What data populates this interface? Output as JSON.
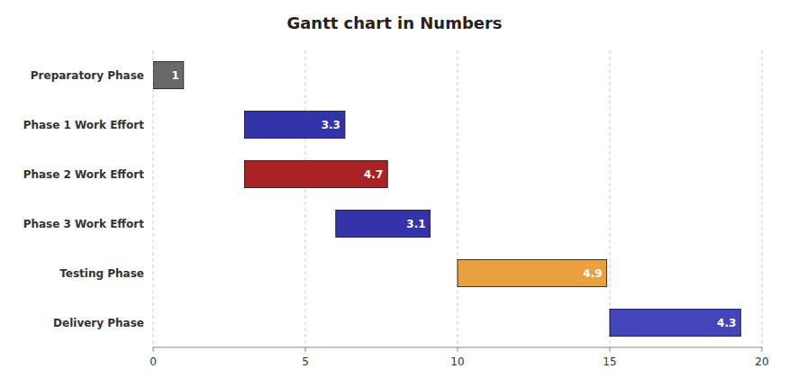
{
  "chart_data": {
    "type": "bar",
    "orientation": "horizontal",
    "title": "Gantt chart in Numbers",
    "categories": [
      "Preparatory Phase",
      "Phase 1 Work Effort",
      "Phase 2 Work Effort",
      "Phase 3 Work Effort",
      "Testing Phase",
      "Delivery Phase"
    ],
    "starts": [
      0,
      3,
      3,
      6,
      10,
      15
    ],
    "values": [
      1,
      3.3,
      4.7,
      3.1,
      4.9,
      4.3
    ],
    "colors": [
      "#696969",
      "#3333aa",
      "#aa2222",
      "#3333aa",
      "#e8a040",
      "#4444bb"
    ],
    "xlim": [
      0,
      20
    ],
    "xticks": [
      0,
      5,
      10,
      15,
      20
    ],
    "grid": true,
    "data_labels": true
  }
}
